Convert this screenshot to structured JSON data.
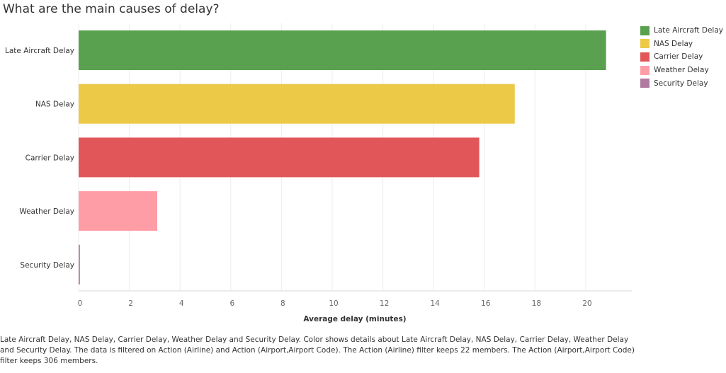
{
  "title": "What are the main causes of delay?",
  "chart_data": {
    "type": "bar",
    "orientation": "horizontal",
    "categories": [
      "Late Aircraft Delay",
      "NAS Delay",
      "Carrier Delay",
      "Weather Delay",
      "Security Delay"
    ],
    "values": [
      20.8,
      17.2,
      15.8,
      3.1,
      0.05
    ],
    "colors": [
      "#59a14f",
      "#edc948",
      "#e15759",
      "#ff9da7",
      "#b07aa1"
    ],
    "xlabel": "Average delay (minutes)",
    "ylabel": "",
    "xlim": [
      0,
      21.8
    ],
    "xticks": [
      "0",
      "2",
      "4",
      "6",
      "8",
      "10",
      "12",
      "14",
      "16",
      "18",
      "20"
    ],
    "grid": "vertical",
    "legend_position": "right",
    "legend": [
      "Late Aircraft Delay",
      "NAS Delay",
      "Carrier Delay",
      "Weather Delay",
      "Security Delay"
    ]
  },
  "caption": "Late Aircraft Delay, NAS Delay, Carrier Delay, Weather Delay and Security Delay.  Color shows details about Late Aircraft Delay, NAS Delay, Carrier Delay, Weather Delay and Security Delay. The data is filtered on Action (Airline) and Action (Airport,Airport Code). The Action (Airline) filter keeps 22 members. The Action (Airport,Airport Code) filter keeps 306 members."
}
